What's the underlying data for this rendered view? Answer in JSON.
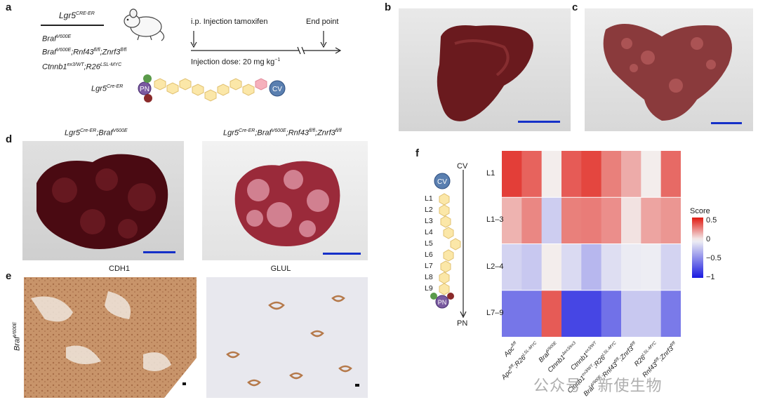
{
  "panels": {
    "a": "a",
    "b": "b",
    "c": "c",
    "d": "d",
    "e": "e",
    "f": "f"
  },
  "panel_a": {
    "header": {
      "base": "Lgr5",
      "sup": "CRE-ER"
    },
    "genotypes": [
      {
        "base": "Braf",
        "sup": "V600E",
        "tail": ""
      },
      {
        "base": "Braf",
        "sup": "V600E",
        "tail": ";Rnf43",
        "sup2": "fl/fl",
        "tail2": ";Znrf3",
        "sup3": "fl/fl"
      },
      {
        "base": "Ctnnb1",
        "sup": "ex3/WT",
        "tail": ";R26",
        "sup2": "LSL-MYC",
        "tail2": "",
        "sup3": ""
      }
    ],
    "schematic_label": {
      "base": "Lgr5",
      "sup": "Cre-ER"
    },
    "pn_label": "PN",
    "cv_label": "CV",
    "timeline": {
      "injection": "i.p. Injection tamoxifen",
      "endpoint": "End point",
      "dose": "Injection dose: 20 mg kg",
      "dose_sup": "−1"
    }
  },
  "panel_d": {
    "left_title": {
      "base": "Lgr5",
      "sup": "Cre-ER",
      "tail": ";Braf",
      "sup2": "V600E"
    },
    "right_title": {
      "base": "Lgr5",
      "sup": "Cre-ER",
      "tail": ";Braf",
      "sup2": "V600E",
      "tail2": ";Rnf43",
      "sup3": "fl/fl",
      "tail3": ";Znrf3",
      "sup4": "fl/fl"
    }
  },
  "panel_e": {
    "left_caption": "CDH1",
    "right_caption": "GLUL",
    "side_label": {
      "base": "Braf",
      "sup": "V600E"
    }
  },
  "panel_f": {
    "axis_top": "CV",
    "axis_bottom": "PN",
    "cv_label": "CV",
    "pn_label": "PN",
    "layers": [
      "L1",
      "L2",
      "L3",
      "L4",
      "L5",
      "L6",
      "L7",
      "L8",
      "L9"
    ]
  },
  "chart_data": {
    "type": "heatmap",
    "title": "",
    "rows": [
      "L1",
      "L1–3",
      "L2–4",
      "L7–9"
    ],
    "columns": [
      {
        "base": "Apc",
        "sup": "fl/fl",
        "tail": "",
        "sup2": ""
      },
      {
        "base": "Apc",
        "sup": "fl/fl",
        "tail": ";R26",
        "sup2": "LSL-MYC"
      },
      {
        "base": "Braf",
        "sup": "V600E",
        "tail": "",
        "sup2": ""
      },
      {
        "base": "Ctnnb1",
        "sup": "Δex3/ex3",
        "tail": "",
        "sup2": ""
      },
      {
        "base": "Ctnnb1",
        "sup": "ex3/WT",
        "tail": "",
        "sup2": ""
      },
      {
        "base": "Ctnnb1",
        "sup": "ex3/WT",
        "tail": ";R26",
        "sup2": "LSL-MYC"
      },
      {
        "base": "Braf",
        "sup": "V600E",
        "tail": ";Rnf43",
        "sup2": "fl/fl",
        "tail2": ";Znrf3",
        "sup3": "fl/fl"
      },
      {
        "base": "R26",
        "sup": "LSL-MYC",
        "tail": "",
        "sup2": ""
      },
      {
        "base": "Rnf43",
        "sup": "fl/fl",
        "tail": ";Znrf3",
        "sup2": "fl/fl"
      }
    ],
    "values": [
      [
        0.5,
        0.4,
        0.02,
        0.42,
        0.48,
        0.32,
        0.2,
        0.02,
        0.38
      ],
      [
        0.18,
        0.3,
        -0.18,
        0.32,
        0.33,
        0.28,
        0.05,
        0.22,
        0.26
      ],
      [
        -0.15,
        -0.2,
        0.02,
        -0.12,
        -0.28,
        -0.1,
        -0.04,
        -0.03,
        -0.15
      ],
      [
        -0.58,
        -0.58,
        0.42,
        -0.8,
        -0.8,
        -0.6,
        -0.2,
        -0.2,
        -0.56
      ]
    ],
    "legend_title": "Score",
    "legend_ticks": [
      {
        "label": "0.5",
        "value": 0.5
      },
      {
        "label": "0",
        "value": 0
      },
      {
        "label": "−0.5",
        "value": -0.5
      },
      {
        "label": "−1",
        "value": -1
      }
    ],
    "color_min": -1.0,
    "color_max": 0.6,
    "colors": {
      "low": "#1a1ae0",
      "mid": "#f4f4f4",
      "high": "#e01a12"
    }
  },
  "watermark": "公众号 · 新使生物"
}
